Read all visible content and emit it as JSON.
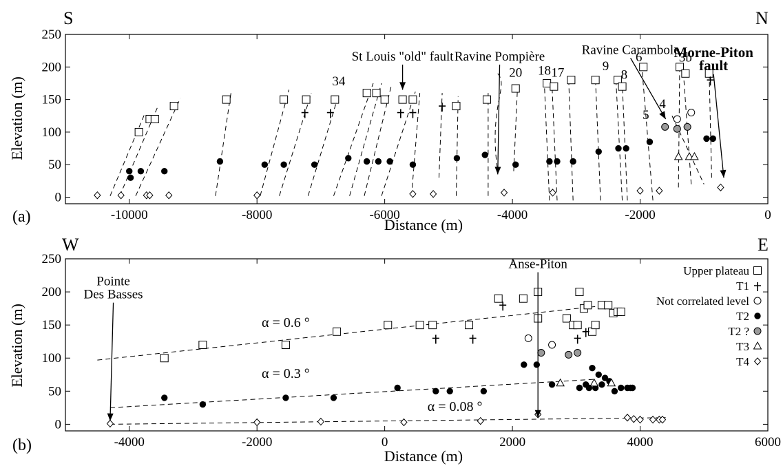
{
  "chart_data": [
    {
      "id": "a",
      "type": "scatter",
      "panel_label": "(a)",
      "corner_left": "S",
      "corner_right": "N",
      "xlabel": "Distance (m)",
      "ylabel": "Elevation (m)",
      "xlim": [
        -11000,
        0
      ],
      "ylim": [
        -10,
        250
      ],
      "xticks": [
        -10000,
        -8000,
        -6000,
        -4000,
        -2000,
        0
      ],
      "xtick_labels": [
        "-10000",
        "-8000",
        "-6000",
        "-4000",
        "-2000",
        "0"
      ],
      "yticks": [
        0,
        50,
        100,
        150,
        200,
        250
      ],
      "ytick_labels": [
        "0",
        "50",
        "100",
        "150",
        "200",
        "250"
      ],
      "series": [
        {
          "marker": "open-square",
          "points": [
            [
              -9850,
              100
            ],
            [
              -9680,
              120
            ],
            [
              -9600,
              120
            ],
            [
              -9300,
              140
            ],
            [
              -8480,
              150
            ],
            [
              -7580,
              150
            ],
            [
              -7230,
              150
            ],
            [
              -6780,
              150
            ],
            [
              -6280,
              160
            ],
            [
              -6130,
              160
            ],
            [
              -6000,
              150
            ],
            [
              -5720,
              150
            ],
            [
              -5560,
              150
            ],
            [
              -4880,
              140
            ],
            [
              -4400,
              150
            ],
            [
              -3950,
              167
            ],
            [
              -3460,
              175
            ],
            [
              -3350,
              170
            ],
            [
              -3080,
              180
            ],
            [
              -2700,
              180
            ],
            [
              -2350,
              180
            ],
            [
              -2280,
              170
            ],
            [
              -1950,
              200
            ],
            [
              -1380,
              200
            ],
            [
              -1290,
              190
            ],
            [
              -920,
              190
            ]
          ]
        },
        {
          "marker": "plus",
          "points": [
            [
              -7250,
              130
            ],
            [
              -6850,
              130
            ],
            [
              -5750,
              130
            ],
            [
              -5560,
              130
            ],
            [
              -5100,
              140
            ],
            [
              -900,
              180
            ]
          ]
        },
        {
          "marker": "open-circle",
          "points": [
            [
              -1420,
              120
            ],
            [
              -1200,
              130
            ]
          ]
        },
        {
          "marker": "black-circle",
          "points": [
            [
              -10000,
              40
            ],
            [
              -9980,
              30
            ],
            [
              -9820,
              40
            ],
            [
              -9450,
              40
            ],
            [
              -8580,
              55
            ],
            [
              -7880,
              50
            ],
            [
              -7580,
              50
            ],
            [
              -7100,
              50
            ],
            [
              -6570,
              60
            ],
            [
              -6280,
              55
            ],
            [
              -6100,
              55
            ],
            [
              -5920,
              55
            ],
            [
              -5560,
              50
            ],
            [
              -4870,
              60
            ],
            [
              -4430,
              65
            ],
            [
              -3950,
              50
            ],
            [
              -3420,
              55
            ],
            [
              -3300,
              55
            ],
            [
              -3050,
              55
            ],
            [
              -2650,
              70
            ],
            [
              -2340,
              75
            ],
            [
              -2220,
              75
            ],
            [
              -1850,
              85
            ],
            [
              -960,
              90
            ],
            [
              -860,
              90
            ]
          ]
        },
        {
          "marker": "grey-circle",
          "points": [
            [
              -1610,
              108
            ],
            [
              -1420,
              105
            ],
            [
              -1260,
              108
            ]
          ]
        },
        {
          "marker": "open-triangle",
          "points": [
            [
              -1400,
              62
            ],
            [
              -1230,
              62
            ],
            [
              -1150,
              62
            ]
          ]
        },
        {
          "marker": "open-diamond",
          "points": [
            [
              -10500,
              3
            ],
            [
              -10130,
              3
            ],
            [
              -9730,
              3
            ],
            [
              -9680,
              3
            ],
            [
              -9380,
              3
            ],
            [
              -8000,
              3
            ],
            [
              -5560,
              5
            ],
            [
              -5240,
              5
            ],
            [
              -4130,
              7
            ],
            [
              -3370,
              7
            ],
            [
              -2000,
              10
            ],
            [
              -1700,
              10
            ],
            [
              -740,
              15
            ]
          ]
        }
      ],
      "annotations": [
        {
          "text": "St Louis \"old\" fault",
          "x": -5720,
          "y": 210,
          "arrow_to": [
            -5720,
            165
          ]
        },
        {
          "text": "Ravine Pompière",
          "x": -4200,
          "y": 210,
          "arrow_to": [
            -4230,
            35
          ]
        },
        {
          "text": "Ravine Carambole",
          "x": -2150,
          "y": 220,
          "arrow_to": [
            -1600,
            120
          ]
        },
        {
          "text": "Morne-Piton",
          "x": -850,
          "y": 215,
          "bold": true
        },
        {
          "text": "fault",
          "x": -850,
          "y": 195,
          "bold": true,
          "arrow_to": [
            -690,
            30
          ]
        },
        {
          "text": "34",
          "x": -6720,
          "y": 172
        },
        {
          "text": "20",
          "x": -3950,
          "y": 185
        },
        {
          "text": "18",
          "x": -3500,
          "y": 188
        },
        {
          "text": "17",
          "x": -3290,
          "y": 185
        },
        {
          "text": "9",
          "x": -2540,
          "y": 195
        },
        {
          "text": "8",
          "x": -2250,
          "y": 182
        },
        {
          "text": "6",
          "x": -2020,
          "y": 209
        },
        {
          "text": "3b",
          "x": -1290,
          "y": 208
        },
        {
          "text": "4",
          "x": -1650,
          "y": 137
        },
        {
          "text": "5",
          "x": -1910,
          "y": 120
        }
      ]
    },
    {
      "id": "b",
      "type": "scatter",
      "panel_label": "(b)",
      "corner_left": "W",
      "corner_right": "E",
      "xlabel": "Distance (m)",
      "ylabel": "Elevation (m)",
      "xlim": [
        -5000,
        6000
      ],
      "ylim": [
        -10,
        250
      ],
      "xticks": [
        -4000,
        -2000,
        0,
        2000,
        4000,
        6000
      ],
      "xtick_labels": [
        "-4000",
        "-2000",
        "0",
        "2000",
        "4000",
        "6000"
      ],
      "yticks": [
        0,
        50,
        100,
        150,
        200,
        250
      ],
      "ytick_labels": [
        "0",
        "50",
        "100",
        "150",
        "200",
        "250"
      ],
      "legend": [
        {
          "label": "Upper plateau",
          "marker": "open-square"
        },
        {
          "label": "T1",
          "marker": "plus"
        },
        {
          "label": "Not correlated level",
          "marker": "open-circle"
        },
        {
          "label": "T2",
          "marker": "black-circle"
        },
        {
          "label": "T2 ?",
          "marker": "grey-circle"
        },
        {
          "label": "T3",
          "marker": "open-triangle"
        },
        {
          "label": "T4",
          "marker": "open-diamond"
        }
      ],
      "legend_position": "right",
      "series": [
        {
          "name": "Upper plateau",
          "marker": "open-square",
          "points": [
            [
              -3450,
              100
            ],
            [
              -2850,
              120
            ],
            [
              -1550,
              120
            ],
            [
              -750,
              140
            ],
            [
              50,
              150
            ],
            [
              550,
              150
            ],
            [
              750,
              150
            ],
            [
              1320,
              150
            ],
            [
              1780,
              190
            ],
            [
              2170,
              190
            ],
            [
              2400,
              160
            ],
            [
              2400,
              200
            ],
            [
              2850,
              160
            ],
            [
              2950,
              150
            ],
            [
              3020,
              150
            ],
            [
              3050,
              200
            ],
            [
              3120,
              175
            ],
            [
              3180,
              180
            ],
            [
              3250,
              140
            ],
            [
              3300,
              150
            ],
            [
              3400,
              180
            ],
            [
              3500,
              180
            ],
            [
              3580,
              168
            ],
            [
              3650,
              170
            ],
            [
              3700,
              170
            ]
          ]
        },
        {
          "name": "T1",
          "marker": "plus",
          "points": [
            [
              1850,
              180
            ],
            [
              800,
              130
            ],
            [
              1380,
              130
            ],
            [
              3020,
              130
            ],
            [
              3150,
              140
            ]
          ]
        },
        {
          "name": "Not correlated level",
          "marker": "open-circle",
          "points": [
            [
              2250,
              130
            ],
            [
              2620,
              120
            ]
          ]
        },
        {
          "name": "T2",
          "marker": "black-circle",
          "points": [
            [
              -3450,
              40
            ],
            [
              -2850,
              30
            ],
            [
              -1550,
              40
            ],
            [
              -800,
              40
            ],
            [
              200,
              55
            ],
            [
              800,
              50
            ],
            [
              1020,
              50
            ],
            [
              1550,
              50
            ],
            [
              2180,
              90
            ],
            [
              2380,
              90
            ],
            [
              2620,
              60
            ],
            [
              3050,
              55
            ],
            [
              3150,
              60
            ],
            [
              3200,
              55
            ],
            [
              3250,
              85
            ],
            [
              3300,
              55
            ],
            [
              3350,
              75
            ],
            [
              3400,
              60
            ],
            [
              3450,
              70
            ],
            [
              3520,
              65
            ],
            [
              3600,
              50
            ],
            [
              3700,
              55
            ],
            [
              3800,
              55
            ],
            [
              3850,
              55
            ],
            [
              3880,
              55
            ]
          ]
        },
        {
          "name": "T2 ?",
          "marker": "grey-circle",
          "points": [
            [
              2450,
              108
            ],
            [
              2880,
              105
            ],
            [
              3020,
              108
            ]
          ]
        },
        {
          "name": "T3",
          "marker": "open-triangle",
          "points": [
            [
              2750,
              62
            ],
            [
              3280,
              62
            ],
            [
              3550,
              62
            ]
          ]
        },
        {
          "name": "T4",
          "marker": "open-diamond",
          "points": [
            [
              -4300,
              1
            ],
            [
              -2000,
              3
            ],
            [
              -1000,
              4
            ],
            [
              300,
              3
            ],
            [
              1500,
              5
            ],
            [
              2400,
              15
            ],
            [
              3800,
              10
            ],
            [
              3900,
              8
            ],
            [
              4000,
              7
            ],
            [
              4200,
              7
            ],
            [
              4300,
              7
            ],
            [
              4350,
              7
            ]
          ]
        }
      ],
      "trend_lines": [
        {
          "label": "α = 0.6 °",
          "from": [
            -4500,
            97
          ],
          "to": [
            3500,
            180
          ]
        },
        {
          "label": "α = 0.3 °",
          "from": [
            -4300,
            25
          ],
          "to": [
            3300,
            68
          ]
        },
        {
          "label": "α = 0.08 °",
          "from": [
            -4300,
            0
          ],
          "to": [
            4400,
            10
          ]
        }
      ],
      "annotations": [
        {
          "text": "Pointe",
          "x": -4250,
          "y": 210
        },
        {
          "text": "Des Basses",
          "x": -4250,
          "y": 190,
          "arrow_to": [
            -4300,
            5
          ]
        },
        {
          "text": "Anse-Piton",
          "x": 2400,
          "y": 236,
          "arrow_to": [
            2400,
            10
          ]
        }
      ]
    }
  ]
}
